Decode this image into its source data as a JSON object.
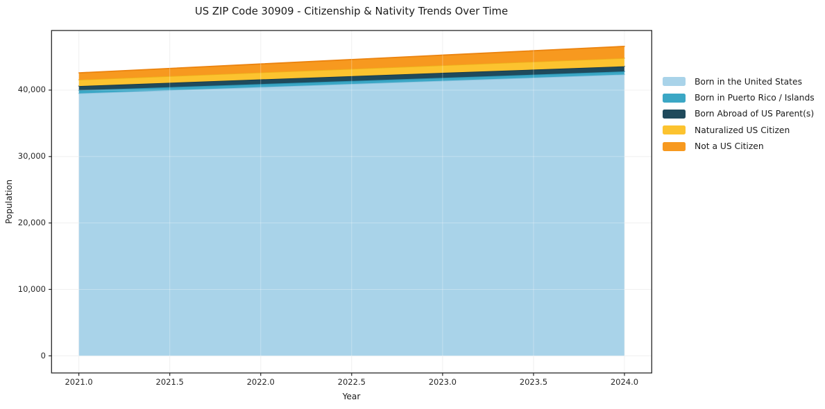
{
  "chart_data": {
    "type": "area",
    "stacked": true,
    "title": "US ZIP Code 30909 - Citizenship & Nativity Trends Over Time",
    "xlabel": "Year",
    "ylabel": "Population",
    "x": [
      2021,
      2022,
      2023,
      2024
    ],
    "series": [
      {
        "name": "Born in the United States",
        "values": [
          39500,
          40450,
          41400,
          42350
        ],
        "color": "#a9d3e9",
        "edge_color": "#8fc4e0"
      },
      {
        "name": "Born in Puerto Rico / Islands",
        "values": [
          470,
          460,
          450,
          460
        ],
        "color": "#3ba7c5",
        "edge_color": "#2a93b3"
      },
      {
        "name": "Born Abroad of US Parent(s)",
        "values": [
          640,
          700,
          750,
          770
        ],
        "color": "#1f4a5c",
        "edge_color": "#16384a"
      },
      {
        "name": "Naturalized US Citizen",
        "values": [
          940,
          1040,
          1130,
          1230
        ],
        "color": "#fcc32f",
        "edge_color": "#eeb01b"
      },
      {
        "name": "Not a US Citizen",
        "values": [
          1040,
          1280,
          1530,
          1770
        ],
        "color": "#f7991f",
        "edge_color": "#eb830f"
      }
    ],
    "xlim": [
      2020.85,
      2024.15
    ],
    "ylim": [
      -2577,
      48970
    ],
    "xticks": {
      "values": [
        2021.0,
        2021.5,
        2022.0,
        2022.5,
        2023.0,
        2023.5,
        2024.0
      ],
      "labels": [
        "2021.0",
        "2021.5",
        "2022.0",
        "2022.5",
        "2023.0",
        "2023.5",
        "2024.0"
      ]
    },
    "yticks": {
      "values": [
        0,
        10000,
        20000,
        30000,
        40000
      ],
      "labels": [
        "0",
        "10,000",
        "20,000",
        "30,000",
        "40,000"
      ]
    },
    "grid": true,
    "legend_position": "right-of-plot"
  },
  "colors": {
    "grid": "#ebebeb",
    "grid_overlay": "rgba(255,255,255,0.30)",
    "spine": "#262626",
    "tick": "#262626",
    "text": "#1a1a1a"
  }
}
